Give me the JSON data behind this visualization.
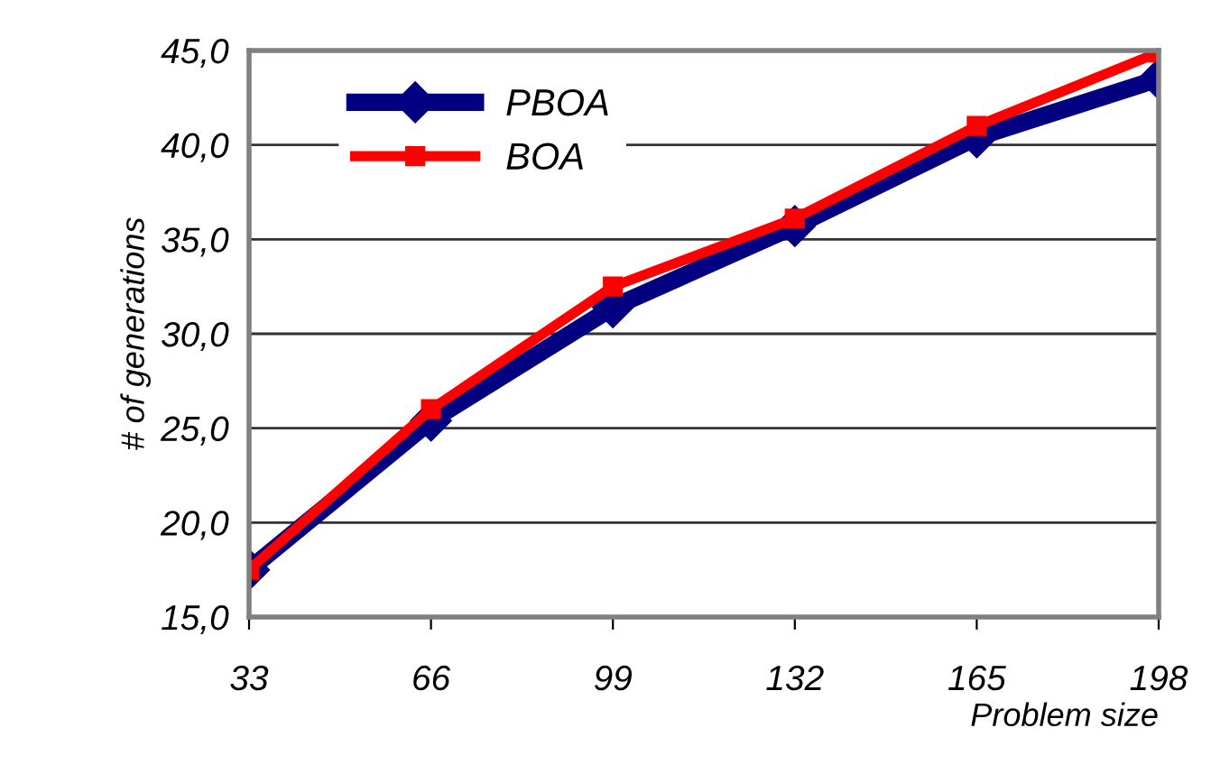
{
  "chart_data": {
    "type": "line",
    "xlabel": "Problem size",
    "ylabel": "# of generations",
    "x": [
      33,
      66,
      99,
      132,
      165,
      198
    ],
    "series": [
      {
        "name": "PBOA",
        "color": "#000080",
        "values": [
          17.5,
          25.4,
          31.4,
          35.7,
          40.4,
          43.5
        ],
        "marker": "diamond"
      },
      {
        "name": "BOA",
        "color": "#ff0000",
        "values": [
          17.5,
          26.0,
          32.5,
          36.1,
          41.0,
          44.9
        ],
        "marker": "square"
      }
    ],
    "xlim": [
      33,
      198
    ],
    "xticks": [
      33,
      66,
      99,
      132,
      165,
      198
    ],
    "ylim": [
      15,
      45
    ],
    "yticks": [
      {
        "value": 15,
        "label": "15,0"
      },
      {
        "value": 20,
        "label": "20,0"
      },
      {
        "value": 25,
        "label": "25,0"
      },
      {
        "value": 30,
        "label": "30,0"
      },
      {
        "value": 35,
        "label": "35,0"
      },
      {
        "value": 40,
        "label": "40,0"
      },
      {
        "value": 45,
        "label": "45,0"
      }
    ],
    "grid": "y",
    "legend": "top left",
    "line_style": "solid"
  }
}
